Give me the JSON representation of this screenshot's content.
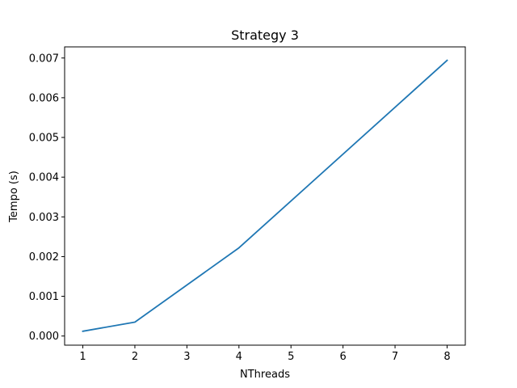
{
  "chart_data": {
    "type": "line",
    "title": "Strategy 3",
    "xlabel": "NThreads",
    "ylabel": "Tempo (s)",
    "xlim": [
      0.65,
      8.35
    ],
    "ylim": [
      -0.00023,
      0.00728
    ],
    "xticks": [
      1,
      2,
      3,
      4,
      5,
      6,
      7,
      8
    ],
    "xtick_labels": [
      "1",
      "2",
      "3",
      "4",
      "5",
      "6",
      "7",
      "8"
    ],
    "yticks": [
      0,
      0.001,
      0.002,
      0.003,
      0.004,
      0.005,
      0.006,
      0.007
    ],
    "ytick_labels": [
      "0.000",
      "0.001",
      "0.002",
      "0.003",
      "0.004",
      "0.005",
      "0.006",
      "0.007"
    ],
    "grid": false,
    "series": [
      {
        "x": [
          1,
          2,
          4,
          8
        ],
        "y": [
          0.00012,
          0.00035,
          0.00222,
          0.00694
        ],
        "color": "#1f77b4"
      }
    ]
  }
}
